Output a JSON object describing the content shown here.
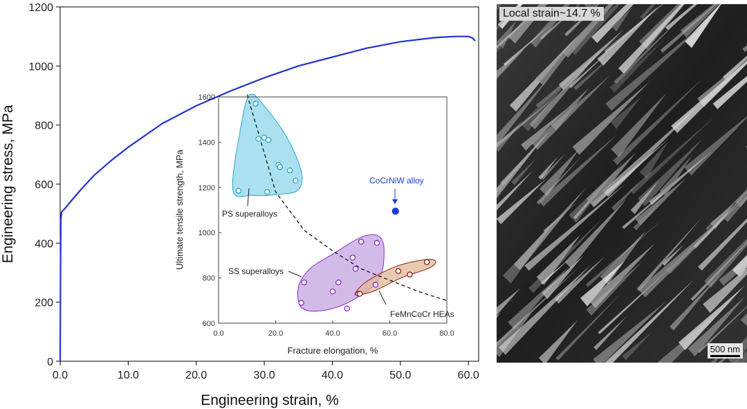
{
  "chart_data": [
    {
      "type": "line",
      "name": "main-stress-strain",
      "xlabel": "Engineering strain, %",
      "ylabel": "Engineering stress, MPa",
      "xlim": [
        0,
        61.5
      ],
      "ylim": [
        0,
        1200
      ],
      "xticks": [
        0,
        10,
        20,
        30,
        40,
        50,
        60
      ],
      "xtick_labels": [
        "0.0",
        "10.0",
        "20.0",
        "30.0",
        "40.0",
        "50.0",
        "60.0"
      ],
      "yticks": [
        0,
        200,
        400,
        600,
        800,
        1000,
        1200
      ],
      "ytick_labels": [
        "0",
        "200",
        "400",
        "600",
        "800",
        "1000",
        "1200"
      ],
      "line_color": "#2233cc",
      "series": [
        {
          "name": "CoCrNiW alloy",
          "x": [
            0,
            0.05,
            0.1,
            0.2,
            0.4,
            0.8,
            1.5,
            3,
            5,
            7.5,
            10,
            15,
            20,
            25,
            30,
            35,
            40,
            45,
            50,
            55,
            58,
            60,
            60.6,
            61
          ],
          "y": [
            0,
            300,
            480,
            505,
            510,
            520,
            540,
            580,
            630,
            680,
            725,
            805,
            865,
            915,
            960,
            1000,
            1030,
            1060,
            1082,
            1096,
            1100,
            1100,
            1095,
            1085
          ]
        }
      ]
    },
    {
      "type": "scatter",
      "name": "inset-ashby",
      "xlabel": "Fracture elongation, %",
      "ylabel": "Ultimate tensile strength, MPa",
      "xlim": [
        0,
        80
      ],
      "ylim": [
        600,
        1600
      ],
      "xticks": [
        0,
        20,
        40,
        60,
        80
      ],
      "xtick_labels": [
        "0.0",
        "20.0",
        "40.0",
        "60.0",
        "80.0"
      ],
      "yticks": [
        600,
        800,
        1000,
        1200,
        1400,
        1600
      ],
      "ytick_labels": [
        "600",
        "800",
        "1000",
        "1200",
        "1400",
        "1600"
      ],
      "series": [
        {
          "name": "PS superalloys",
          "label": "PS superalloys",
          "color": "#2aa8c8",
          "fill": "#8fd6ec",
          "region": [
            [
              5,
              1190
            ],
            [
              8,
              1480
            ],
            [
              11,
              1610
            ],
            [
              16,
              1560
            ],
            [
              24,
              1420
            ],
            [
              29,
              1270
            ],
            [
              28,
              1190
            ],
            [
              22,
              1170
            ],
            [
              12,
              1165
            ]
          ],
          "x": [
            7,
            13,
            14,
            16,
            17,
            17.5,
            21,
            21.5,
            25,
            27
          ],
          "y": [
            1185,
            1570,
            1415,
            1420,
            1180,
            1410,
            1300,
            1290,
            1275,
            1230
          ]
        },
        {
          "name": "SS superalloys",
          "label": "SS superalloys",
          "color": "#8a2bc8",
          "fill": "#c4a4e0",
          "region": [
            [
              28,
              760
            ],
            [
              32,
              840
            ],
            [
              40,
              905
            ],
            [
              50,
              980
            ],
            [
              56,
              985
            ],
            [
              58,
              920
            ],
            [
              56,
              790
            ],
            [
              46,
              695
            ],
            [
              36,
              655
            ],
            [
              29,
              670
            ]
          ],
          "x": [
            29,
            30,
            40,
            42,
            45,
            47,
            48,
            49,
            50,
            55,
            55.5
          ],
          "y": [
            690,
            780,
            740,
            780,
            665,
            890,
            840,
            730,
            960,
            770,
            955
          ]
        },
        {
          "name": "FeMnCoCr HEAs",
          "label": "FeMnCoCr HEAs",
          "color": "#8b2010",
          "fill": "#e0b89a",
          "region": [
            [
              48,
              735
            ],
            [
              52,
              785
            ],
            [
              62,
              850
            ],
            [
              72,
              880
            ],
            [
              76,
              875
            ],
            [
              74,
              845
            ],
            [
              64,
              800
            ],
            [
              55,
              745
            ],
            [
              49,
              725
            ]
          ],
          "x": [
            49.5,
            63,
            67,
            73
          ],
          "y": [
            730,
            830,
            815,
            870
          ]
        },
        {
          "name": "CoCrNiW alloy",
          "label": "CoCrNiW alloy",
          "color": "#1a3fd0",
          "x": [
            62
          ],
          "y": [
            1095
          ]
        }
      ],
      "trend_line": {
        "style": "dashed",
        "x": [
          10,
          20,
          30,
          40,
          50,
          60,
          70,
          80
        ],
        "y": [
          1610,
          1180,
          1010,
          920,
          840,
          790,
          740,
          700
        ]
      }
    }
  ],
  "sem_image": {
    "label": "Local strain~14.7 %",
    "scale_bar": "500 nm"
  }
}
